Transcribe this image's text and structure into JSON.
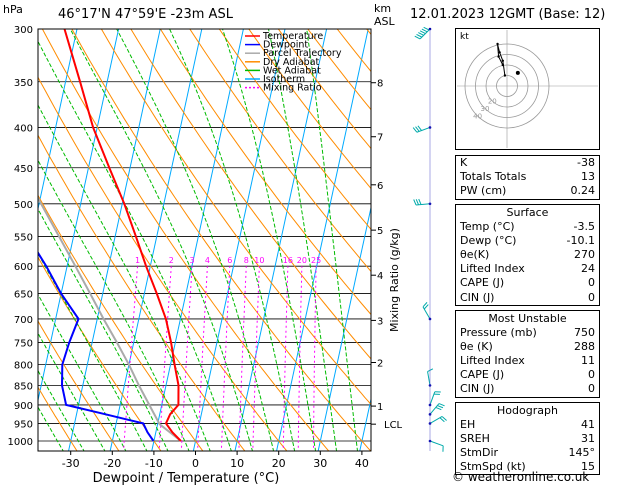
{
  "header": {
    "pressure_unit": "hPa",
    "location": "46°17'N 47°59'E -23m ASL",
    "height_unit": "km\nASL",
    "datetime": "12.01.2023 12GMT (Base: 12)"
  },
  "chart_data": {
    "type": "skew-t",
    "xlabel": "Dewpoint / Temperature (°C)",
    "ylabel_right": "Mixing Ratio (g/kg)",
    "pressure_ticks": [
      300,
      350,
      400,
      450,
      500,
      550,
      600,
      650,
      700,
      750,
      800,
      850,
      900,
      950,
      1000
    ],
    "temperature_ticks": [
      -30,
      -20,
      -10,
      0,
      10,
      20,
      30,
      40
    ],
    "xlim": [
      -40,
      40
    ],
    "plim": [
      300,
      1050
    ],
    "height_ticks_km": [
      {
        "label": "8",
        "p": 351
      },
      {
        "label": "7",
        "p": 411
      },
      {
        "label": "6",
        "p": 473
      },
      {
        "label": "5",
        "p": 540
      },
      {
        "label": "4",
        "p": 616
      },
      {
        "label": "3",
        "p": 703
      },
      {
        "label": "2",
        "p": 795
      },
      {
        "label": "1",
        "p": 903
      },
      {
        "label": "LCL",
        "p": 952
      }
    ],
    "mixing_ratio_labels": [
      "1",
      "2",
      "3",
      "4",
      "6",
      "8",
      "10",
      "16",
      "20",
      "25"
    ],
    "mixing_ratios": [
      1,
      2,
      3,
      4,
      6,
      8,
      10,
      16,
      20,
      25
    ],
    "legend": [
      "Temperature",
      "Dewpoint",
      "Parcel Trajectory",
      "Dry Adiabat",
      "Wet Adiabat",
      "Isotherm",
      "Mixing Ratio"
    ],
    "legend_position": "top-right",
    "colors": {
      "temperature": "#ff0000",
      "dewpoint": "#0000ff",
      "parcel": "#aaaaaa",
      "dry_adiabat": "#ff8c00",
      "wet_adiabat": "#00bb00",
      "isotherm": "#00aaff",
      "mixing_ratio": "#ff00ff"
    },
    "temperature_profile": [
      {
        "p": 1000,
        "t": -3.5
      },
      {
        "p": 975,
        "t": -6
      },
      {
        "p": 950,
        "t": -8
      },
      {
        "p": 925,
        "t": -7.5
      },
      {
        "p": 900,
        "t": -6
      },
      {
        "p": 850,
        "t": -7
      },
      {
        "p": 800,
        "t": -9
      },
      {
        "p": 750,
        "t": -11
      },
      {
        "p": 700,
        "t": -13.5
      },
      {
        "p": 650,
        "t": -17
      },
      {
        "p": 600,
        "t": -21
      },
      {
        "p": 550,
        "t": -25
      },
      {
        "p": 500,
        "t": -29.5
      },
      {
        "p": 450,
        "t": -35
      },
      {
        "p": 400,
        "t": -41
      },
      {
        "p": 350,
        "t": -46.5
      },
      {
        "p": 300,
        "t": -53
      }
    ],
    "dewpoint_profile": [
      {
        "p": 1000,
        "t": -10.1
      },
      {
        "p": 975,
        "t": -12
      },
      {
        "p": 950,
        "t": -13.5
      },
      {
        "p": 925,
        "t": -23
      },
      {
        "p": 900,
        "t": -33
      },
      {
        "p": 850,
        "t": -35
      },
      {
        "p": 800,
        "t": -36
      },
      {
        "p": 750,
        "t": -35.5
      },
      {
        "p": 700,
        "t": -34.5
      },
      {
        "p": 650,
        "t": -40
      },
      {
        "p": 600,
        "t": -45
      },
      {
        "p": 550,
        "t": -51
      },
      {
        "p": 500,
        "t": -58
      },
      {
        "p": 450,
        "t": -60
      },
      {
        "p": 400,
        "t": -60
      },
      {
        "p": 350,
        "t": -66
      },
      {
        "p": 300,
        "t": -72
      }
    ],
    "parcel_profile": [
      {
        "p": 1000,
        "t": -3.5
      },
      {
        "p": 952,
        "t": -9.5
      },
      {
        "p": 900,
        "t": -13
      },
      {
        "p": 850,
        "t": -16.5
      },
      {
        "p": 800,
        "t": -20
      },
      {
        "p": 750,
        "t": -24
      },
      {
        "p": 700,
        "t": -28.5
      },
      {
        "p": 650,
        "t": -33
      },
      {
        "p": 600,
        "t": -38
      },
      {
        "p": 550,
        "t": -43.5
      },
      {
        "p": 500,
        "t": -49.5
      },
      {
        "p": 450,
        "t": -56
      },
      {
        "p": 400,
        "t": -63
      }
    ],
    "hodograph": {
      "label": "kt",
      "ring_labels": [
        "20",
        "30",
        "40"
      ],
      "points": [
        [
          -4,
          20
        ],
        [
          -8,
          28
        ],
        [
          -9,
          40
        ],
        [
          -7,
          32
        ],
        [
          -4,
          24
        ],
        [
          -2,
          10
        ]
      ],
      "storm_motion": [
        -3,
        22
      ]
    },
    "wind_barbs": [
      {
        "p": 300,
        "dir": 225,
        "kt": 55
      },
      {
        "p": 400,
        "dir": 250,
        "kt": 30
      },
      {
        "p": 500,
        "dir": 265,
        "kt": 25
      },
      {
        "p": 700,
        "dir": 330,
        "kt": 15
      },
      {
        "p": 850,
        "dir": 350,
        "kt": 10
      },
      {
        "p": 900,
        "dir": 20,
        "kt": 20
      },
      {
        "p": 925,
        "dir": 40,
        "kt": 25
      },
      {
        "p": 950,
        "dir": 60,
        "kt": 20
      },
      {
        "p": 1000,
        "dir": 110,
        "kt": 10
      }
    ]
  },
  "indices": [
    {
      "label": "K",
      "value": "-38"
    },
    {
      "label": "Totals Totals",
      "value": "13"
    },
    {
      "label": "PW (cm)",
      "value": "0.24"
    }
  ],
  "surface": {
    "title": "Surface",
    "rows": [
      {
        "label": "Temp (°C)",
        "value": "-3.5"
      },
      {
        "label": "Dewp (°C)",
        "value": "-10.1"
      },
      {
        "label": "θe(K)",
        "value": "270"
      },
      {
        "label": "Lifted Index",
        "value": "24"
      },
      {
        "label": "CAPE (J)",
        "value": "0"
      },
      {
        "label": "CIN (J)",
        "value": "0"
      }
    ]
  },
  "most_unstable": {
    "title": "Most Unstable",
    "rows": [
      {
        "label": "Pressure (mb)",
        "value": "750"
      },
      {
        "label": "θe (K)",
        "value": "288"
      },
      {
        "label": "Lifted Index",
        "value": "11"
      },
      {
        "label": "CAPE (J)",
        "value": "0"
      },
      {
        "label": "CIN (J)",
        "value": "0"
      }
    ]
  },
  "hodograph_table": {
    "title": "Hodograph",
    "rows": [
      {
        "label": "EH",
        "value": "41"
      },
      {
        "label": "SREH",
        "value": "31"
      },
      {
        "label": "StmDir",
        "value": "145°"
      },
      {
        "label": "StmSpd (kt)",
        "value": "15"
      }
    ]
  },
  "credit": "© weatheronline.co.uk"
}
